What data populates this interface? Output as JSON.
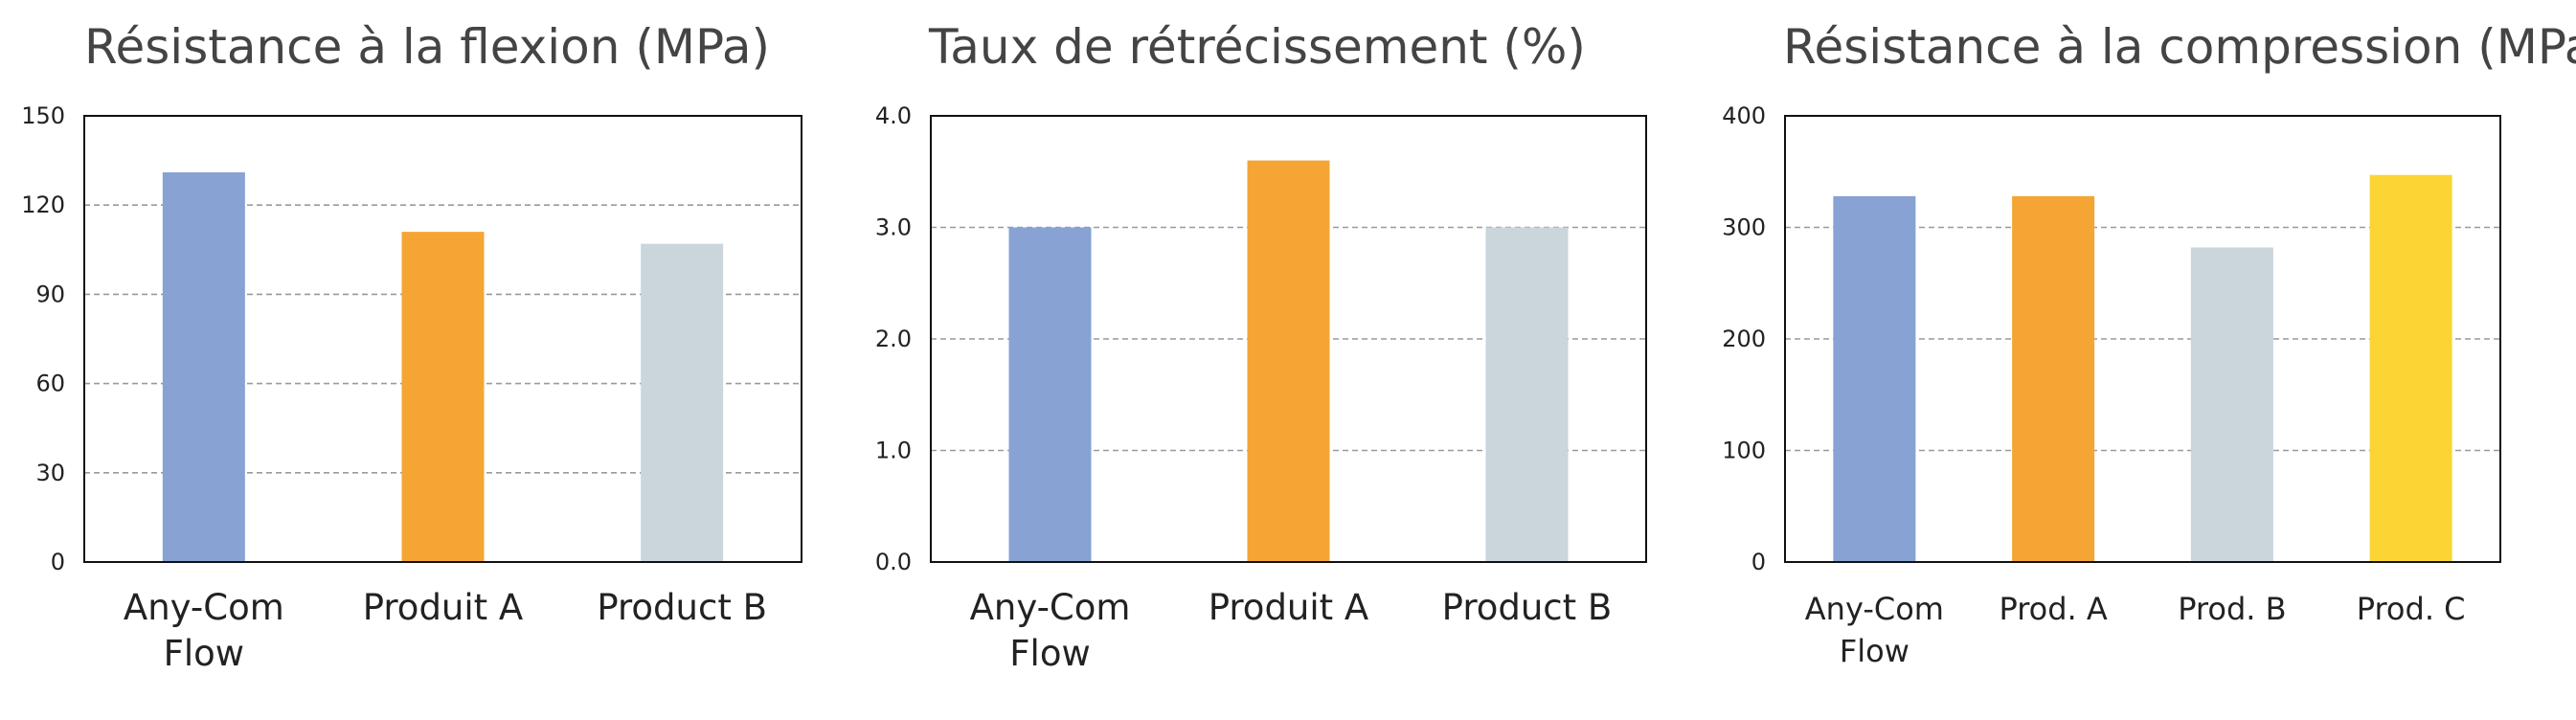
{
  "chart_data": [
    {
      "type": "bar",
      "title": "Résistance à la flexion (MPa)",
      "categories": [
        [
          "Any-Com",
          "Flow"
        ],
        [
          "Produit A"
        ],
        [
          "Product B"
        ]
      ],
      "values": [
        131,
        111,
        107
      ],
      "colors": [
        "#87A2D3",
        "#F4A533",
        "#CAD5DC"
      ],
      "ylim": [
        0,
        150
      ],
      "yticks": [
        "0",
        "30",
        "60",
        "90",
        "120",
        "150"
      ],
      "grid": true,
      "legend": "none"
    },
    {
      "type": "bar",
      "title": "Taux de rétrécissement (%)",
      "categories": [
        [
          "Any-Com",
          "Flow"
        ],
        [
          "Produit A"
        ],
        [
          "Product B"
        ]
      ],
      "values": [
        3.0,
        3.6,
        3.0
      ],
      "colors": [
        "#87A2D3",
        "#F4A533",
        "#CAD5DC"
      ],
      "ylim": [
        0,
        4
      ],
      "yticks": [
        "0.0",
        "1.0",
        "2.0",
        "3.0",
        "4.0"
      ],
      "grid": true,
      "legend": "none"
    },
    {
      "type": "bar",
      "title": "Résistance à la compression (MPa)",
      "categories": [
        [
          "Any-Com",
          "Flow"
        ],
        [
          "Prod. A"
        ],
        [
          "Prod. B"
        ],
        [
          "Prod. C"
        ]
      ],
      "values": [
        328,
        328,
        282,
        347
      ],
      "colors": [
        "#87A2D3",
        "#F4A533",
        "#CAD5DC",
        "#FCD535"
      ],
      "ylim": [
        0,
        400
      ],
      "yticks": [
        "0",
        "100",
        "200",
        "300",
        "400"
      ],
      "grid": true,
      "legend": "none"
    }
  ]
}
